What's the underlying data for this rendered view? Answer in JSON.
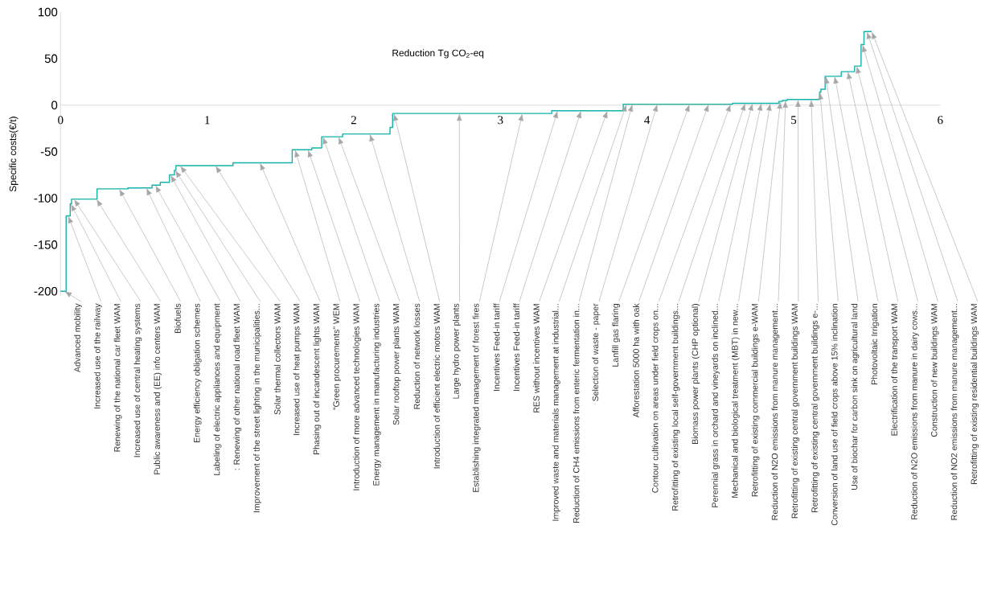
{
  "chart_data": {
    "type": "step",
    "xlabel": "Reduction Tg CO$_{2}$-eq",
    "ylabel": "Specific costs(€/t)",
    "color": "#13b3ab",
    "x": [
      0,
      0.038,
      0.066,
      0.075,
      0.249,
      0.459,
      0.624,
      0.68,
      0.743,
      0.777,
      0.787,
      1.176,
      1.58,
      1.714,
      1.781,
      1.924,
      2.247,
      2.265,
      3.006,
      3.35,
      3.503,
      3.651,
      3.838,
      3.92,
      4.583,
      4.899,
      4.923,
      4.937,
      4.956,
      4.97,
      5.078,
      5.177,
      5.186,
      5.204,
      5.215,
      5.325,
      5.416,
      5.46,
      5.48,
      5.533
    ],
    "values": [
      -200,
      -119,
      -106,
      -101,
      -90,
      -89,
      -86,
      -83,
      -75,
      -70,
      -65,
      -62,
      -48,
      -46,
      -34,
      -31,
      -24,
      -9,
      -9,
      -6,
      -6,
      -6,
      1,
      1,
      2,
      4,
      5,
      5,
      6,
      6,
      6,
      14,
      17,
      17,
      31,
      36,
      42,
      65,
      79,
      79
    ],
    "xlim": [
      0,
      6
    ],
    "xticks": [
      0,
      1,
      2,
      3,
      4,
      5,
      6
    ],
    "ylim": [
      -205,
      100
    ],
    "yticks": [
      -200,
      -150,
      -100,
      -50,
      0,
      50,
      100
    ],
    "grid": false,
    "annotations": [
      {
        "text": "Advanced mobility",
        "x": 0.026,
        "y": -200
      },
      {
        "text": "Increased use of the railway",
        "x": 0.052,
        "y": -119
      },
      {
        "text": "Renewing of the national car fleet WAM",
        "x": 0.07,
        "y": -106
      },
      {
        "text": "Increased use of central heating systems",
        "x": 0.092,
        "y": -101
      },
      {
        "text": "Public awareness and (EE) info centers WAM",
        "x": 0.245,
        "y": -101
      },
      {
        "text": "Biofuels",
        "x": 0.4,
        "y": -90
      },
      {
        "text": "Energy efficiency obligation schemes",
        "x": 0.585,
        "y": -89
      },
      {
        "text": "Labeling of electric appliances and equipment",
        "x": 0.646,
        "y": -86
      },
      {
        "text": ": Renewing of other national road fleet WAM",
        "x": 0.75,
        "y": -75
      },
      {
        "text": "Improvement of the street lighting in the municipalities...",
        "x": 0.782,
        "y": -70
      },
      {
        "text": "Solar thermal collectors WAM",
        "x": 0.816,
        "y": -65
      },
      {
        "text": "Increased use of heat pumps WAM",
        "x": 1.057,
        "y": -65
      },
      {
        "text": "Phasing out of incandescent lights WAM",
        "x": 1.36,
        "y": -62
      },
      {
        "text": "“Green procurements” WEM",
        "x": 1.6,
        "y": -48
      },
      {
        "text": "Introduction of more advanced technologies WAM",
        "x": 1.688,
        "y": -48
      },
      {
        "text": "Energy management in manufacturing industries",
        "x": 1.79,
        "y": -34
      },
      {
        "text": "Solar rooftop power plants WAM",
        "x": 1.896,
        "y": -34
      },
      {
        "text": "Reduction of network losses",
        "x": 2.11,
        "y": -31
      },
      {
        "text": "Introduction of efficient electric motors WAM",
        "x": 2.275,
        "y": -9
      },
      {
        "text": "Large hydro power plants",
        "x": 2.72,
        "y": -9
      },
      {
        "text": "Establishing integrated management of forest fires",
        "x": 3.15,
        "y": -9
      },
      {
        "text": "Incentives Feed-in tariff",
        "x": 3.39,
        "y": -6
      },
      {
        "text": "Incentives Feed-in tariff",
        "x": 3.55,
        "y": -6
      },
      {
        "text": "RES without incentives WAM",
        "x": 3.73,
        "y": -6
      },
      {
        "text": "Improved waste and materials management at industrial...",
        "x": 3.86,
        "y": 1
      },
      {
        "text": "Reduction of CH4 emissions from enteric fermentation in...",
        "x": 3.9,
        "y": 1
      },
      {
        "text": "Selection of waste - paper",
        "x": 4.07,
        "y": 1
      },
      {
        "text": "Lanfill gas flaring",
        "x": 4.29,
        "y": 1
      },
      {
        "text": "Afforestation 5000 ha with oak",
        "x": 4.42,
        "y": 1
      },
      {
        "text": "Contour cultivation on areas under field crops on...",
        "x": 4.57,
        "y": 1
      },
      {
        "text": "Retrofitting of existing local self-government buildings...",
        "x": 4.67,
        "y": 2
      },
      {
        "text": "Biomass power plants (CHP optional)",
        "x": 4.72,
        "y": 2
      },
      {
        "text": "Perennial grass in orchard and vineyards on inclined...",
        "x": 4.78,
        "y": 2
      },
      {
        "text": "Mechanical and biological treatment (MBT) in new...",
        "x": 4.84,
        "y": 2
      },
      {
        "text": "Retrofitting of existing commercial buildings e-WAM",
        "x": 4.91,
        "y": 4
      },
      {
        "text": "Reduction of N2O emissions from manure management...",
        "x": 4.945,
        "y": 5
      },
      {
        "text": "Retrofitting of existing central government buildings WAM",
        "x": 5.03,
        "y": 6
      },
      {
        "text": "Retrofitting of existing central government buildings e-...",
        "x": 5.12,
        "y": 6
      },
      {
        "text": "Conversion of land use of field crops above 15% inclination",
        "x": 5.18,
        "y": 14
      },
      {
        "text": "Use of biochar for carbon sink on agricultural land",
        "x": 5.22,
        "y": 31
      },
      {
        "text": "Photovoltaic Irrigation",
        "x": 5.28,
        "y": 31
      },
      {
        "text": "Electrification of the transport WAM",
        "x": 5.37,
        "y": 36
      },
      {
        "text": "Reduction of N2O emissions from manure in dairy cows...",
        "x": 5.43,
        "y": 42
      },
      {
        "text": "Construction of new buildings WAM",
        "x": 5.47,
        "y": 65
      },
      {
        "text": "Reduction of NO2 emissions from manure management...",
        "x": 5.5,
        "y": 79
      },
      {
        "text": "Retrofitting of existing residential buildings WAM",
        "x": 5.533,
        "y": 79
      }
    ]
  }
}
